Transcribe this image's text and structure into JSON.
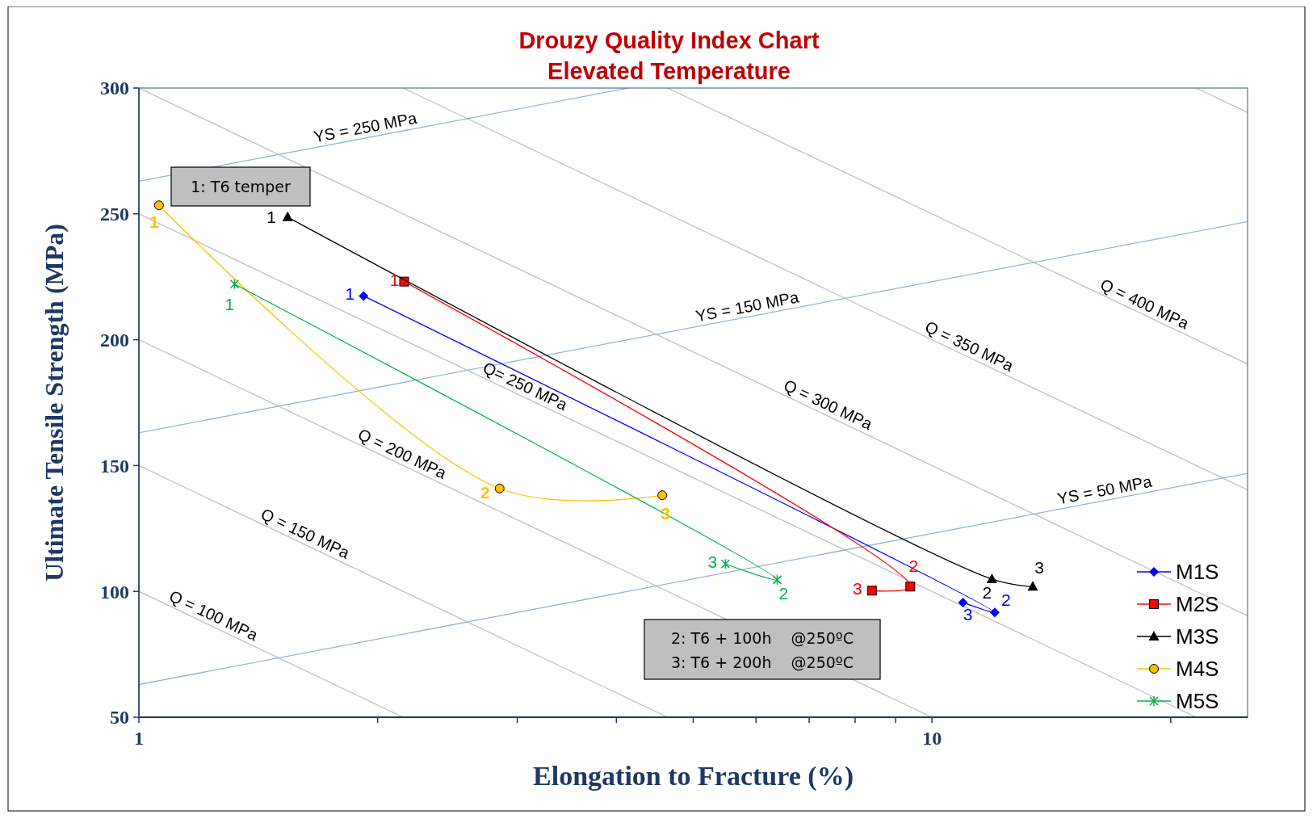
{
  "chart_data": {
    "type": "line",
    "title": "Drouzy Quality Index Chart",
    "subtitle": "Elevated Temperature",
    "xlabel": "Elongation to Fracture (%)",
    "ylabel": "Ultimate Tensile Strength (MPa)",
    "log": "x",
    "grid": false,
    "legend": "bottom right",
    "xlim": [
      1,
      25
    ],
    "ylim": [
      50,
      300
    ],
    "xticks": [
      1,
      {
        "value": 2,
        "label": null
      },
      {
        "value": 3,
        "label": null
      },
      {
        "value": 4,
        "label": null
      },
      {
        "value": 5,
        "label": null
      },
      {
        "value": 6,
        "label": null
      },
      {
        "value": 7,
        "label": null
      },
      {
        "value": 8,
        "label": null
      },
      {
        "value": 9,
        "label": null
      },
      10,
      {
        "value": 20,
        "label": null
      }
    ],
    "yticks": [
      50,
      100,
      150,
      200,
      250,
      300
    ],
    "series": [
      {
        "x": [
          1,
          2.154
        ],
        "values": [
          100,
          50
        ],
        "color": "#c0c0c0",
        "marker": "none"
      },
      {
        "x": [
          1,
          4.642
        ],
        "values": [
          150,
          50
        ],
        "color": "#c0c0c0",
        "marker": "none"
      },
      {
        "x": [
          1,
          10
        ],
        "values": [
          200,
          50
        ],
        "color": "#c0c0c0",
        "marker": "none"
      },
      {
        "x": [
          1,
          21.54
        ],
        "values": [
          250,
          50
        ],
        "color": "#c0c0c0",
        "marker": "none"
      },
      {
        "x": [
          1,
          25
        ],
        "values": [
          300,
          90.3
        ],
        "color": "#c0c0c0",
        "marker": "none"
      },
      {
        "x": [
          2.154,
          25
        ],
        "values": [
          300,
          140.3
        ],
        "color": "#c0c0c0",
        "marker": "none"
      },
      {
        "x": [
          4.642,
          25
        ],
        "values": [
          300,
          190.3
        ],
        "color": "#c0c0c0",
        "marker": "none"
      },
      {
        "x": [
          21.54,
          25
        ],
        "values": [
          300,
          290.3
        ],
        "color": "#c0c0c0",
        "marker": "none"
      },
      {
        "x": [
          1,
          4.14
        ],
        "values": [
          263,
          300
        ],
        "color": "#95b3d7",
        "marker": "none"
      },
      {
        "x": [
          1,
          25
        ],
        "values": [
          163,
          246.9
        ],
        "color": "#95b3d7",
        "marker": "none"
      },
      {
        "x": [
          1,
          25
        ],
        "values": [
          63,
          146.9
        ],
        "color": "#95b3d7",
        "marker": "none"
      },
      {
        "name": "M1S",
        "color": "#0000ff",
        "marker": "diamond",
        "x": [
          1.92,
          12.0,
          10.94
        ],
        "values": [
          217.4,
          91.6,
          95.6
        ]
      },
      {
        "name": "M2S",
        "color": "#ff0000",
        "marker": "square",
        "x": [
          2.16,
          9.39,
          8.4
        ],
        "values": [
          223.1,
          101.9,
          100.3
        ]
      },
      {
        "name": "M3S",
        "color": "#000000",
        "marker": "triangle",
        "x": [
          1.54,
          11.9,
          13.4
        ],
        "values": [
          248.7,
          104.9,
          101.9
        ]
      },
      {
        "name": "M4S",
        "color": "#ffc000",
        "marker": "circle",
        "x": [
          1.06,
          2.85,
          4.57
        ],
        "values": [
          253.4,
          140.9,
          138.2
        ]
      },
      {
        "name": "M5S",
        "color": "#00b050",
        "marker": "cross",
        "x": [
          1.32,
          6.38,
          5.49
        ],
        "values": [
          222.1,
          104.6,
          110.9
        ]
      }
    ],
    "annotations": [
      "1: T6 temper",
      "2: T6 + 100h    @250ºC",
      "3: T6 + 200h    @250ºC",
      {
        "text": "Q = 100 MPa",
        "x": 1.226,
        "y": 86.7
      },
      {
        "text": "Q = 150 MPa",
        "x": 1.6,
        "y": 119.3
      },
      {
        "text": "Q = 200 MPa",
        "x": 2.12,
        "y": 151
      },
      {
        "text": "Q= 250 MPa",
        "x": 3.03,
        "y": 177.8
      },
      {
        "text": "Q = 300 MPa",
        "x": 7.3,
        "y": 170.5
      },
      {
        "text": "Q = 350 MPa",
        "x": 11,
        "y": 193.7
      },
      {
        "text": "Q = 400 MPa",
        "x": 18.3,
        "y": 210.5
      },
      {
        "text": "YS = 250 MPa",
        "x": 1.94,
        "y": 280.3
      },
      {
        "text": "YS = 150 MPa",
        "x": 5.88,
        "y": 209.1
      },
      {
        "text": "YS = 50 MPa",
        "x": 16.6,
        "y": 136.2
      },
      {
        "text": "1",
        "x": 1.92,
        "y": 217.4
      },
      {
        "text": "2",
        "x": 12.0,
        "y": 91.6
      },
      {
        "text": "3",
        "x": 10.94,
        "y": 95.6
      },
      {
        "text": "1",
        "x": 2.16,
        "y": 223.1
      },
      {
        "text": "2",
        "x": 9.39,
        "y": 101.9
      },
      {
        "text": "3",
        "x": 8.4,
        "y": 100.3
      },
      {
        "text": "1",
        "x": 1.54,
        "y": 248.7
      },
      {
        "text": "2",
        "x": 11.9,
        "y": 104.9
      },
      {
        "text": "3",
        "x": 13.4,
        "y": 101.9
      },
      {
        "text": "1",
        "x": 1.06,
        "y": 253.4
      },
      {
        "text": "2",
        "x": 2.85,
        "y": 140.9
      },
      {
        "text": "3",
        "x": 4.57,
        "y": 138.2
      },
      {
        "text": "1",
        "x": 1.32,
        "y": 222.1
      },
      {
        "text": "2",
        "x": 6.38,
        "y": 104.6
      },
      {
        "text": "3",
        "x": 5.49,
        "y": 110.9
      }
    ]
  }
}
